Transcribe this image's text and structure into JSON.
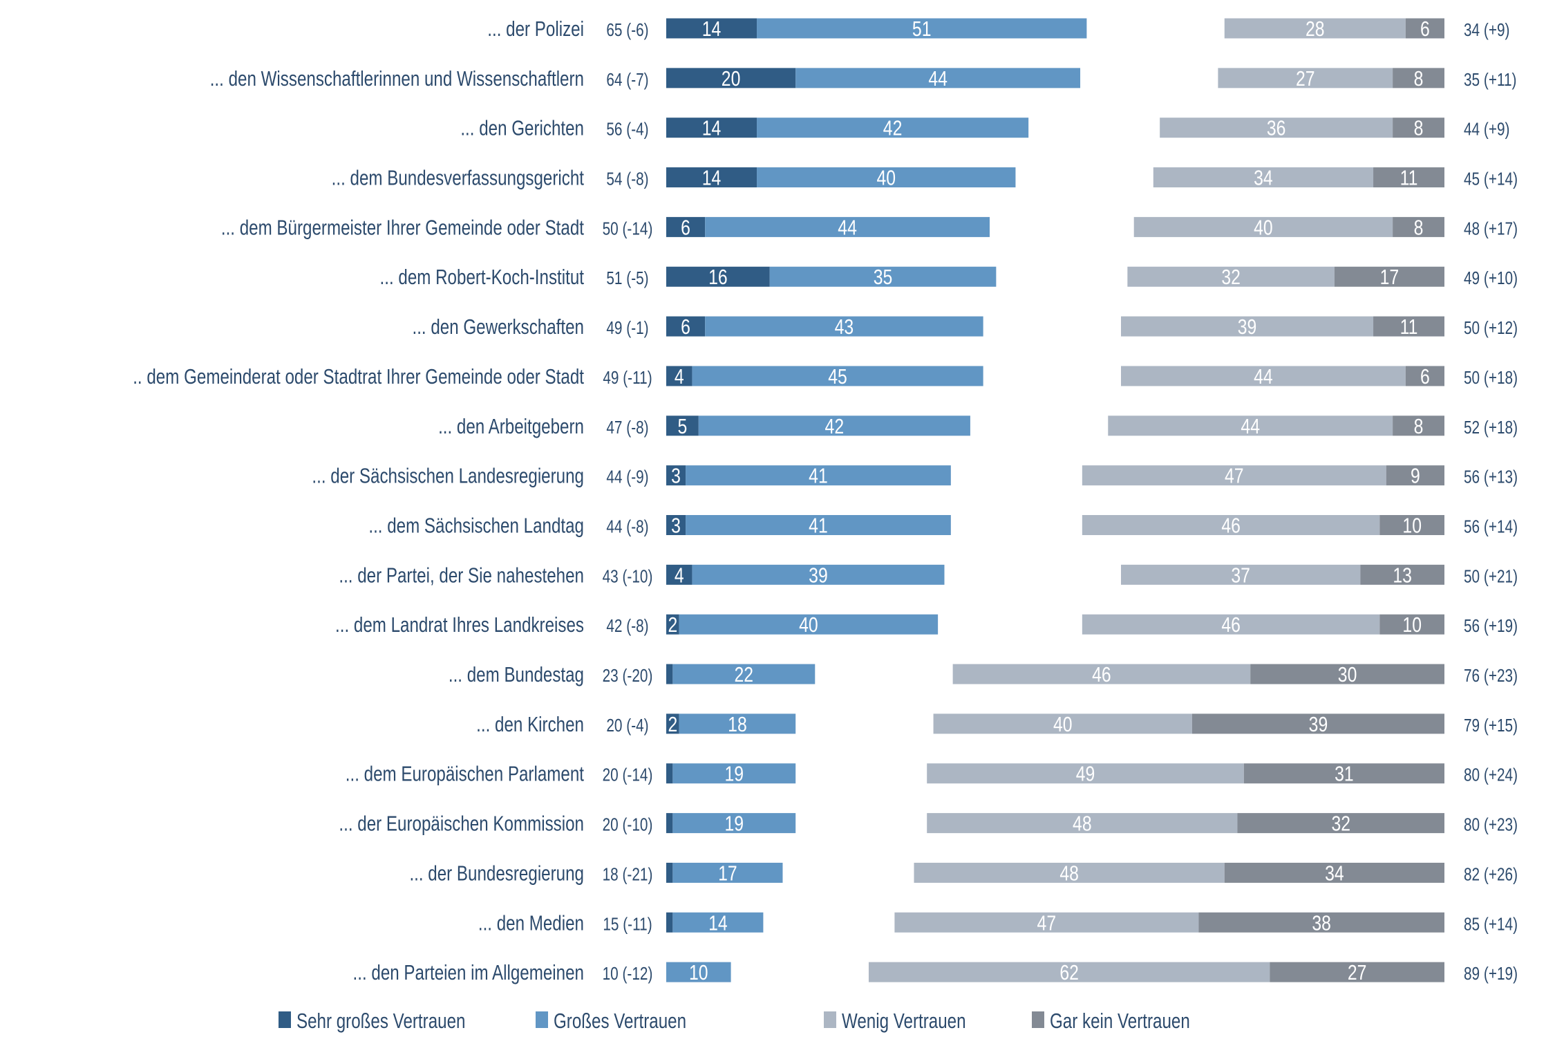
{
  "chart_data": {
    "type": "bar",
    "orientation": "horizontal-diverging-stacked",
    "title": "",
    "xlabel": "",
    "ylabel": "",
    "unit": "percent",
    "grid": false,
    "legend_position": "bottom",
    "categories": [
      "... der Polizei",
      "... den Wissenschaftlerinnen und Wissenschaftlern",
      "... den Gerichten",
      "... dem Bundesverfassungsgericht",
      "... dem Bürgermeister Ihrer Gemeinde oder Stadt",
      "... dem Robert-Koch-Institut",
      "... den Gewerkschaften",
      ".. dem Gemeinderat oder Stadtrat Ihrer Gemeinde oder Stadt",
      "... den Arbeitgebern",
      "... der Sächsischen Landesregierung",
      "... dem Sächsischen Landtag",
      "... der Partei, der Sie nahestehen",
      "... dem  Landrat Ihres Landkreises",
      "... dem Bundestag",
      "... den Kirchen",
      "... dem Europäischen Parlament",
      "... der Europäischen Kommission",
      "... der Bundesregierung",
      "... den Medien",
      "... den Parteien im Allgemeinen"
    ],
    "series": [
      {
        "name": "Sehr großes Vertrauen",
        "side": "left",
        "color": "#305c85",
        "values": [
          14,
          20,
          14,
          14,
          6,
          16,
          6,
          4,
          5,
          3,
          3,
          4,
          2,
          1,
          2,
          1,
          1,
          1,
          1,
          0
        ]
      },
      {
        "name": "Großes Vertrauen",
        "side": "left",
        "color": "#6196c4",
        "values": [
          51,
          44,
          42,
          40,
          44,
          35,
          43,
          45,
          42,
          41,
          41,
          39,
          40,
          22,
          18,
          19,
          19,
          17,
          14,
          10
        ]
      },
      {
        "name": "Wenig Vertrauen",
        "side": "right",
        "color": "#acb6c3",
        "values": [
          28,
          27,
          36,
          34,
          40,
          32,
          39,
          44,
          44,
          47,
          46,
          37,
          46,
          46,
          40,
          49,
          48,
          48,
          47,
          62
        ]
      },
      {
        "name": "Gar kein Vertrauen",
        "side": "right",
        "color": "#838a94",
        "values": [
          6,
          8,
          8,
          11,
          8,
          17,
          11,
          6,
          8,
          9,
          10,
          13,
          10,
          30,
          39,
          31,
          32,
          34,
          38,
          27
        ]
      }
    ],
    "trust_totals": [
      "65 (-6)",
      "64 (-7)",
      "56 (-4)",
      "54 (-8)",
      "50 (-14)",
      "51 (-5)",
      "49 (-1)",
      "49 (-11)",
      "47 (-8)",
      "44 (-9)",
      "44 (-8)",
      "43 (-10)",
      "42 (-8)",
      "23 (-20)",
      "20 (-4)",
      "20 (-14)",
      "20 (-10)",
      "18 (-21)",
      "15 (-11)",
      "10 (-12)"
    ],
    "distrust_totals": [
      "34 (+9)",
      "35 (+11)",
      "44 (+9)",
      "45 (+14)",
      "48 (+17)",
      "49 (+10)",
      "50 (+12)",
      "50 (+18)",
      "52 (+18)",
      "56 (+13)",
      "56 (+14)",
      "50 (+21)",
      "56 (+19)",
      "76 (+23)",
      "79 (+15)",
      "80 (+24)",
      "80 (+23)",
      "82 (+26)",
      "85 (+14)",
      "89 (+19)"
    ]
  },
  "legend": {
    "items": [
      {
        "label": "Sehr großes Vertrauen",
        "color": "#305c85"
      },
      {
        "label": "Großes Vertrauen",
        "color": "#6196c4"
      },
      {
        "label": "Wenig Vertrauen",
        "color": "#acb6c3"
      },
      {
        "label": "Gar kein Vertrauen",
        "color": "#838a94"
      }
    ]
  },
  "colors": {
    "text": "#2c4a6c",
    "segment_label": "#ffffff"
  }
}
